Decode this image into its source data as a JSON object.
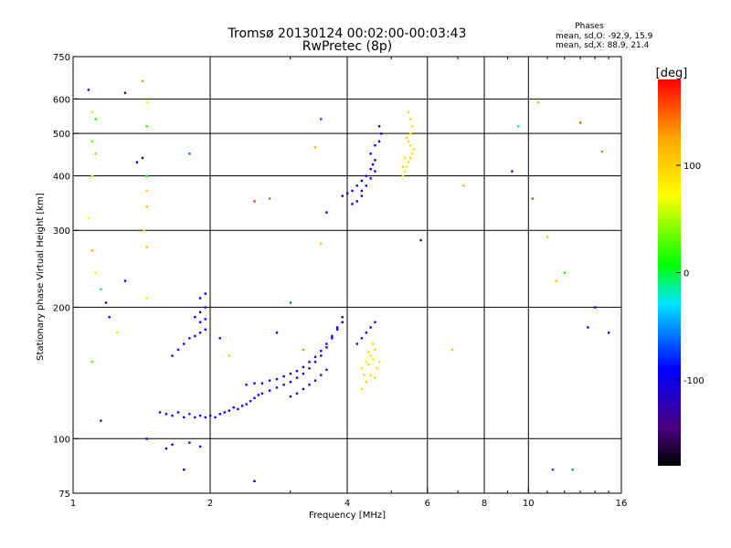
{
  "chart_data": {
    "type": "scatter",
    "title": "Tromsø 20130124 00:02:00-00:03:43",
    "subtitle": "RwPretec (8p)",
    "xlabel": "Frequency [MHz]",
    "ylabel": "Stationary phase Virtual Height [km]",
    "x_scale": "log",
    "y_scale": "log",
    "xlim": [
      1,
      16
    ],
    "ylim": [
      75,
      750
    ],
    "xticks": [
      1,
      2,
      4,
      6,
      8,
      10,
      16
    ],
    "xtick_labels": [
      "1",
      "2",
      "4",
      "6",
      "8",
      "10",
      "16"
    ],
    "yticks": [
      75,
      100,
      200,
      300,
      400,
      500,
      600,
      750
    ],
    "ytick_labels": [
      "75",
      "100",
      "200",
      "300",
      "400",
      "500",
      "600",
      "750"
    ],
    "xgrid": [
      2,
      4,
      6,
      8,
      10
    ],
    "ygrid": [
      100,
      200,
      300,
      400,
      500,
      600
    ],
    "stats": {
      "heading": "Phases",
      "o_line": "mean, sd,O: -92.9, 15.9",
      "x_line": "mean, sd,X:  88.9, 21.4"
    },
    "colorbar": {
      "label": "[deg]",
      "range": [
        -180,
        180
      ],
      "ticks": [
        100,
        0,
        -100
      ],
      "tick_labels": [
        "100",
        "0",
        "-100"
      ],
      "colormap": "rainbow (black-purple-blue-cyan-green-yellow-orange-red)"
    },
    "series": [
      {
        "mode": "O",
        "description_phase_mean": -92.9,
        "points": [
          [
            1.55,
            115,
            -100
          ],
          [
            1.6,
            114,
            -90
          ],
          [
            1.65,
            113,
            -110
          ],
          [
            1.7,
            115,
            -95
          ],
          [
            1.75,
            112,
            -100
          ],
          [
            1.8,
            114,
            -85
          ],
          [
            1.85,
            112,
            -105
          ],
          [
            1.9,
            113,
            -90
          ],
          [
            1.95,
            112,
            -100
          ],
          [
            2.0,
            113,
            -95
          ],
          [
            2.05,
            112,
            -110
          ],
          [
            2.1,
            114,
            -100
          ],
          [
            2.15,
            115,
            -90
          ],
          [
            2.2,
            116,
            -105
          ],
          [
            2.25,
            118,
            -95
          ],
          [
            2.3,
            117,
            -100
          ],
          [
            2.35,
            119,
            -90
          ],
          [
            2.4,
            120,
            -110
          ],
          [
            2.45,
            122,
            -100
          ],
          [
            2.5,
            124,
            -95
          ],
          [
            2.55,
            126,
            -100
          ],
          [
            2.6,
            127,
            -110
          ],
          [
            2.7,
            129,
            -90
          ],
          [
            2.8,
            131,
            -100
          ],
          [
            2.9,
            133,
            -105
          ],
          [
            3.0,
            135,
            -95
          ],
          [
            3.1,
            138,
            -110
          ],
          [
            3.2,
            141,
            -100
          ],
          [
            3.3,
            145,
            -90
          ],
          [
            3.4,
            150,
            -105
          ],
          [
            3.5,
            155,
            -100
          ],
          [
            3.6,
            162,
            -110
          ],
          [
            3.7,
            170,
            -95
          ],
          [
            3.8,
            180,
            -100
          ],
          [
            3.9,
            190,
            -110
          ],
          [
            2.4,
            133,
            -90
          ],
          [
            2.5,
            134,
            -100
          ],
          [
            2.6,
            134,
            -95
          ],
          [
            2.7,
            136,
            -105
          ],
          [
            2.8,
            137,
            -100
          ],
          [
            2.9,
            139,
            -90
          ],
          [
            3.0,
            141,
            -110
          ],
          [
            3.1,
            143,
            -100
          ],
          [
            3.2,
            146,
            -95
          ],
          [
            3.3,
            150,
            -100
          ],
          [
            3.4,
            154,
            -105
          ],
          [
            3.5,
            159,
            -90
          ],
          [
            3.6,
            165,
            -100
          ],
          [
            3.7,
            172,
            -110
          ],
          [
            3.8,
            178,
            -100
          ],
          [
            3.9,
            185,
            -95
          ],
          [
            3.0,
            125,
            -120
          ],
          [
            3.1,
            127,
            -125
          ],
          [
            3.2,
            130,
            -115
          ],
          [
            3.3,
            133,
            -120
          ],
          [
            3.4,
            136,
            -125
          ],
          [
            3.5,
            140,
            -115
          ],
          [
            3.6,
            144,
            -120
          ],
          [
            1.75,
            165,
            -100
          ],
          [
            1.8,
            170,
            -95
          ],
          [
            1.85,
            172,
            -105
          ],
          [
            1.9,
            175,
            -100
          ],
          [
            1.95,
            178,
            -90
          ],
          [
            1.85,
            190,
            -100
          ],
          [
            1.9,
            195,
            -110
          ],
          [
            1.95,
            200,
            -95
          ],
          [
            1.9,
            210,
            -100
          ],
          [
            1.95,
            215,
            -105
          ],
          [
            1.9,
            185,
            -100
          ],
          [
            1.95,
            188,
            -95
          ],
          [
            1.7,
            160,
            -100
          ],
          [
            1.65,
            155,
            -110
          ],
          [
            1.6,
            95,
            -100
          ],
          [
            1.65,
            97,
            -90
          ],
          [
            1.8,
            98,
            -110
          ],
          [
            1.9,
            96,
            -100
          ],
          [
            1.45,
            100,
            -95
          ],
          [
            3.9,
            360,
            -100
          ],
          [
            4.0,
            365,
            -95
          ],
          [
            4.1,
            370,
            -110
          ],
          [
            4.2,
            380,
            -100
          ],
          [
            4.3,
            390,
            -90
          ],
          [
            4.4,
            400,
            -100
          ],
          [
            4.5,
            415,
            -105
          ],
          [
            4.55,
            425,
            -100
          ],
          [
            4.6,
            435,
            -95
          ],
          [
            4.4,
            380,
            -110
          ],
          [
            4.3,
            370,
            -100
          ],
          [
            4.5,
            450,
            -100
          ],
          [
            4.6,
            470,
            -95
          ],
          [
            4.7,
            480,
            -105
          ],
          [
            4.75,
            500,
            -100
          ],
          [
            4.7,
            520,
            -110
          ],
          [
            4.2,
            350,
            -100
          ],
          [
            4.1,
            345,
            -95
          ],
          [
            4.3,
            360,
            -105
          ],
          [
            4.5,
            395,
            -100
          ],
          [
            4.6,
            410,
            -95
          ],
          [
            4.2,
            165,
            -100
          ],
          [
            4.3,
            170,
            -95
          ],
          [
            4.4,
            175,
            -105
          ],
          [
            4.5,
            180,
            -100
          ],
          [
            4.6,
            185,
            -110
          ]
        ]
      },
      {
        "mode": "X",
        "description_phase_mean": 88.9,
        "points": [
          [
            4.3,
            145,
            90
          ],
          [
            4.35,
            140,
            95
          ],
          [
            4.4,
            150,
            85
          ],
          [
            4.45,
            148,
            100
          ],
          [
            4.5,
            155,
            90
          ],
          [
            4.55,
            152,
            80
          ],
          [
            4.6,
            160,
            95
          ],
          [
            4.65,
            145,
            90
          ],
          [
            4.7,
            150,
            85
          ],
          [
            4.4,
            135,
            100
          ],
          [
            4.5,
            140,
            90
          ],
          [
            4.6,
            138,
            95
          ],
          [
            4.3,
            130,
            85
          ],
          [
            4.45,
            158,
            90
          ],
          [
            4.55,
            165,
            100
          ],
          [
            5.3,
            400,
            90
          ],
          [
            5.35,
            410,
            95
          ],
          [
            5.4,
            420,
            85
          ],
          [
            5.45,
            430,
            90
          ],
          [
            5.5,
            440,
            100
          ],
          [
            5.55,
            450,
            90
          ],
          [
            5.6,
            460,
            85
          ],
          [
            5.5,
            470,
            95
          ],
          [
            5.45,
            480,
            90
          ],
          [
            5.4,
            490,
            100
          ],
          [
            5.5,
            500,
            85
          ],
          [
            5.55,
            520,
            90
          ],
          [
            5.5,
            540,
            95
          ],
          [
            5.45,
            560,
            90
          ],
          [
            5.35,
            440,
            80
          ],
          [
            5.3,
            420,
            100
          ]
        ]
      }
    ],
    "scattered_points": [
      [
        1.08,
        630,
        -140
      ],
      [
        1.1,
        560,
        60
      ],
      [
        1.12,
        540,
        20
      ],
      [
        1.1,
        480,
        30
      ],
      [
        1.12,
        450,
        40
      ],
      [
        1.1,
        400,
        90
      ],
      [
        1.08,
        320,
        70
      ],
      [
        1.1,
        270,
        120
      ],
      [
        1.12,
        240,
        60
      ],
      [
        1.15,
        220,
        -20
      ],
      [
        1.18,
        205,
        -110
      ],
      [
        1.2,
        190,
        -100
      ],
      [
        1.25,
        175,
        60
      ],
      [
        1.1,
        150,
        30
      ],
      [
        1.15,
        110,
        -140
      ],
      [
        1.3,
        620,
        -150
      ],
      [
        1.42,
        660,
        130
      ],
      [
        1.45,
        590,
        70
      ],
      [
        1.45,
        520,
        20
      ],
      [
        1.42,
        440,
        -150
      ],
      [
        1.45,
        400,
        10
      ],
      [
        1.45,
        370,
        100
      ],
      [
        1.45,
        340,
        110
      ],
      [
        1.43,
        300,
        90
      ],
      [
        1.45,
        275,
        110
      ],
      [
        1.38,
        430,
        -90
      ],
      [
        1.8,
        450,
        -60
      ],
      [
        1.3,
        230,
        -90
      ],
      [
        1.45,
        210,
        60
      ],
      [
        2.5,
        350,
        160
      ],
      [
        2.7,
        355,
        150
      ],
      [
        3.5,
        540,
        -70
      ],
      [
        3.4,
        465,
        120
      ],
      [
        3.6,
        330,
        -110
      ],
      [
        3.5,
        280,
        110
      ],
      [
        3.2,
        160,
        130
      ],
      [
        2.8,
        175,
        -90
      ],
      [
        3.0,
        205,
        -60
      ],
      [
        2.1,
        170,
        -90
      ],
      [
        2.2,
        155,
        100
      ],
      [
        2.5,
        80,
        -90
      ],
      [
        1.75,
        85,
        -90
      ],
      [
        5.8,
        285,
        -150
      ],
      [
        6.8,
        160,
        110
      ],
      [
        7.2,
        380,
        120
      ],
      [
        9.2,
        410,
        -140
      ],
      [
        9.5,
        520,
        -30
      ],
      [
        10.5,
        590,
        40
      ],
      [
        10.2,
        355,
        160
      ],
      [
        11.0,
        290,
        110
      ],
      [
        11.5,
        230,
        110
      ],
      [
        12.0,
        240,
        20
      ],
      [
        13.0,
        530,
        150
      ],
      [
        14.0,
        200,
        -90
      ],
      [
        14.5,
        455,
        140
      ],
      [
        15.0,
        175,
        -90
      ],
      [
        13.5,
        180,
        -90
      ],
      [
        12.5,
        85,
        -50
      ],
      [
        11.3,
        85,
        -70
      ]
    ]
  }
}
